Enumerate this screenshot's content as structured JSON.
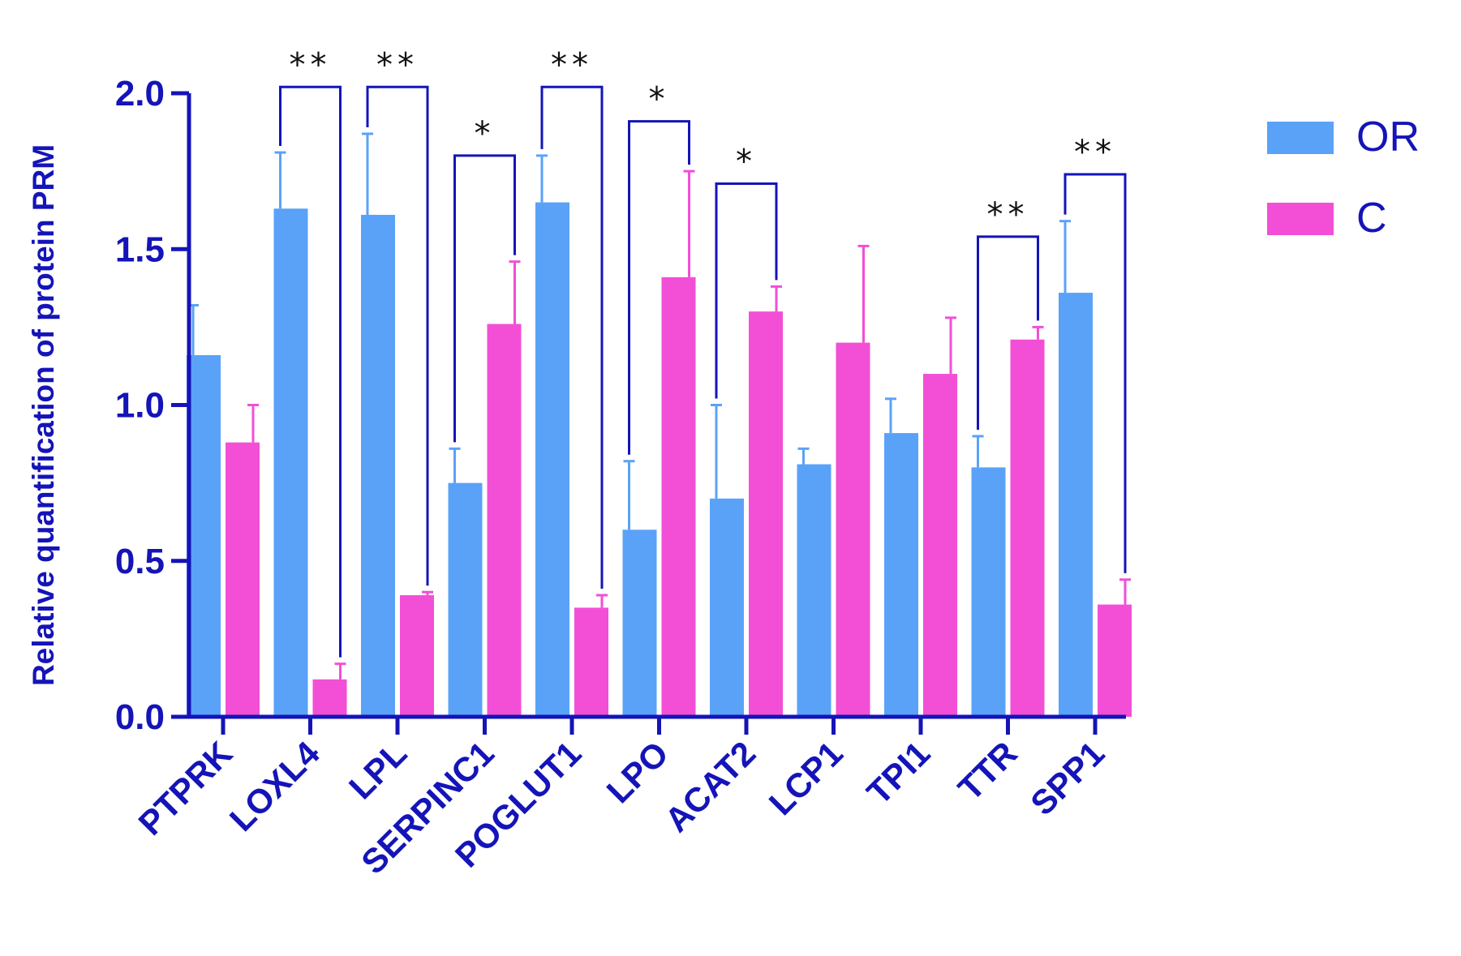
{
  "chart_data": {
    "type": "bar",
    "ylabel": "Relative quantification of protein PRM",
    "xlabel": "",
    "ylim": [
      0,
      2.0
    ],
    "yticks": [
      "0.0",
      "0.5",
      "1.0",
      "1.5",
      "2.0"
    ],
    "categories": [
      "PTPRK",
      "LOXL4",
      "LPL",
      "SERPINC1",
      "POGLUT1",
      "LPO",
      "ACAT2",
      "LCP1",
      "TPI1",
      "TTR",
      "SPP1"
    ],
    "series": [
      {
        "name": "OR",
        "color": "#5aa2f8",
        "values": [
          1.16,
          1.63,
          1.61,
          0.75,
          1.65,
          0.6,
          0.7,
          0.81,
          0.91,
          0.8,
          1.36
        ],
        "errors": [
          0.16,
          0.18,
          0.26,
          0.11,
          0.15,
          0.22,
          0.3,
          0.05,
          0.11,
          0.1,
          0.23
        ]
      },
      {
        "name": "C",
        "color": "#f24fd6",
        "values": [
          0.88,
          0.12,
          0.39,
          1.26,
          0.35,
          1.41,
          1.3,
          1.2,
          1.1,
          1.21,
          0.36
        ],
        "errors": [
          0.12,
          0.05,
          0.01,
          0.2,
          0.04,
          0.34,
          0.08,
          0.31,
          0.18,
          0.04,
          0.08
        ]
      }
    ],
    "significance": [
      {
        "category": "LOXL4",
        "label": "**",
        "bracket_top": 2.02
      },
      {
        "category": "LPL",
        "label": "**",
        "bracket_top": 2.02
      },
      {
        "category": "SERPINC1",
        "label": "*",
        "bracket_top": 1.8
      },
      {
        "category": "POGLUT1",
        "label": "**",
        "bracket_top": 2.02
      },
      {
        "category": "LPO",
        "label": "*",
        "bracket_top": 1.91
      },
      {
        "category": "ACAT2",
        "label": "*",
        "bracket_top": 1.71
      },
      {
        "category": "TTR",
        "label": "**",
        "bracket_top": 1.54
      },
      {
        "category": "SPP1",
        "label": "**",
        "bracket_top": 1.74
      }
    ],
    "legend": {
      "placement": "top-right"
    }
  }
}
